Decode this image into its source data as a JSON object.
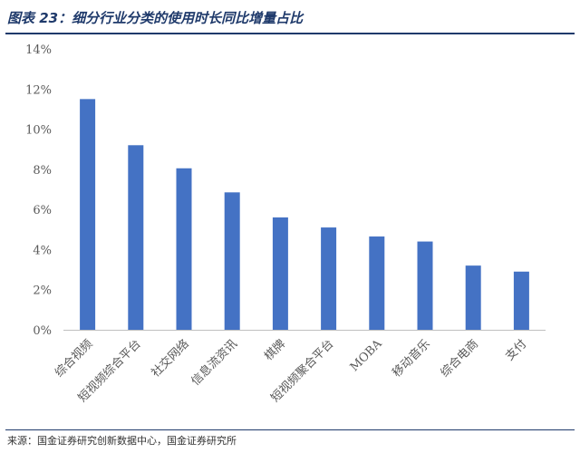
{
  "title": "图表 23：细分行业分类的使用时长同比增量占比",
  "source": "来源：国金证券研究创新数据中心，国金证券研究所",
  "chart_data": {
    "type": "bar",
    "categories": [
      "综合视频",
      "短视频综合平台",
      "社交网络",
      "信息流资讯",
      "棋牌",
      "短视频聚合平台",
      "MOBA",
      "移动音乐",
      "综合电商",
      "支付"
    ],
    "values": [
      11.5,
      9.2,
      8.05,
      6.85,
      5.6,
      5.1,
      4.65,
      4.4,
      3.2,
      2.9
    ],
    "yticks": [
      "0%",
      "2%",
      "4%",
      "6%",
      "8%",
      "10%",
      "12%",
      "14%"
    ],
    "ylim": [
      0,
      14
    ],
    "bar_color": "#4472c4",
    "grid": false,
    "legend": "none"
  }
}
